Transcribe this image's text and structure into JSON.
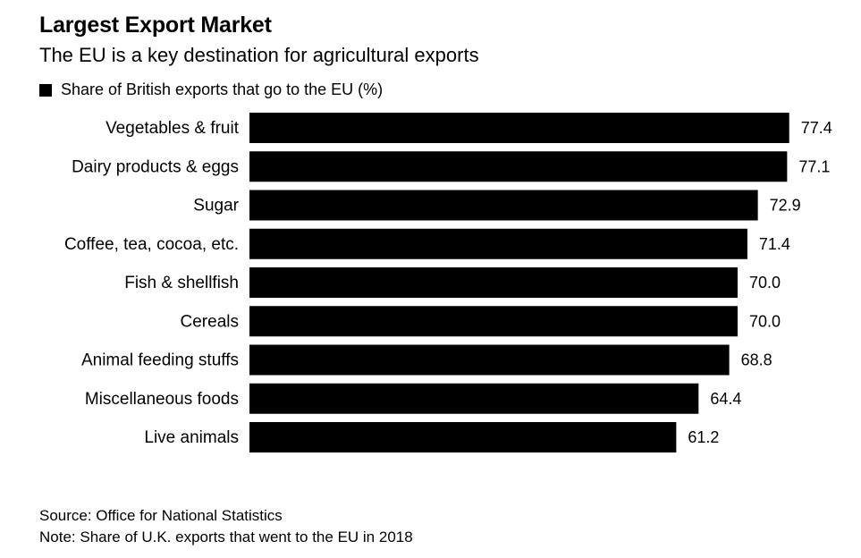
{
  "chart_data": {
    "type": "bar",
    "orientation": "horizontal",
    "title": "Largest Export Market",
    "subtitle": "The EU is a key destination for agricultural exports",
    "legend": "Share of British exports that go to the EU (%)",
    "categories": [
      "Vegetables & fruit",
      "Dairy products & eggs",
      "Sugar",
      "Coffee, tea, cocoa, etc.",
      "Fish & shellfish",
      "Cereals",
      "Animal feeding stuffs",
      "Miscellaneous foods",
      "Live animals"
    ],
    "values": [
      77.4,
      77.1,
      72.9,
      71.4,
      70.0,
      70.0,
      68.8,
      64.4,
      61.2
    ],
    "value_labels": [
      "77.4",
      "77.1",
      "72.9",
      "71.4",
      "70.0",
      "70.0",
      "68.8",
      "64.4",
      "61.2"
    ],
    "bar_color": "#000000",
    "source": "Source: Office for National Statistics",
    "note": "Note: Share of U.K. exports that went to the EU in 2018"
  }
}
